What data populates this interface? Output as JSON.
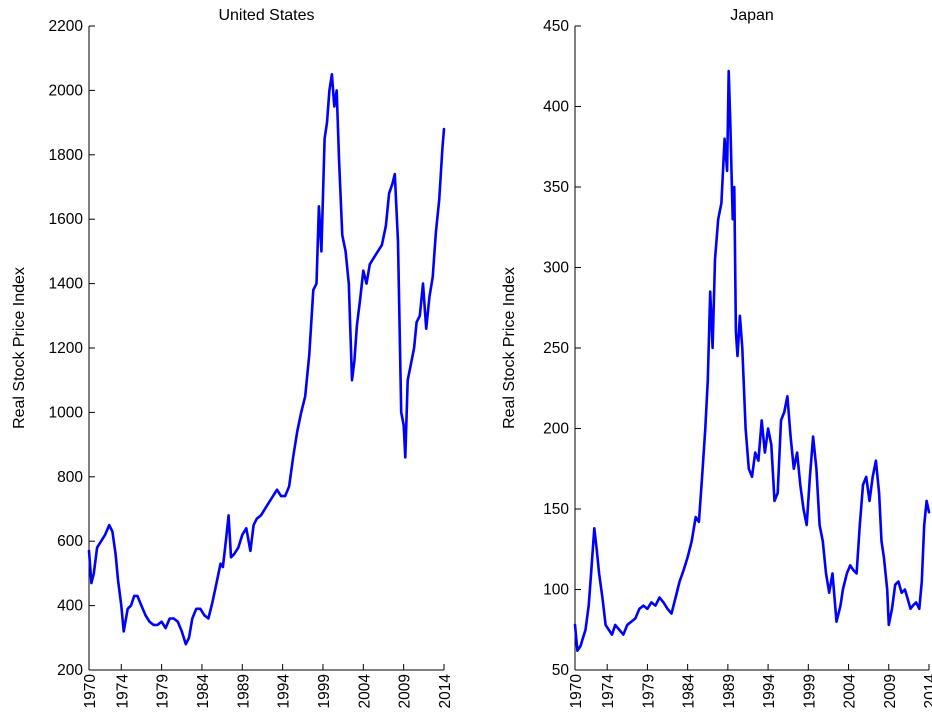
{
  "chart_data": [
    {
      "type": "line",
      "title": "United States",
      "xlabel": "",
      "ylabel": "Real Stock Price Index",
      "xlim": [
        1970,
        2014
      ],
      "ylim": [
        200,
        2200
      ],
      "xticks": [
        1970,
        1974,
        1979,
        1984,
        1989,
        1994,
        1999,
        2004,
        2009,
        2014
      ],
      "yticks": [
        200,
        400,
        600,
        800,
        1000,
        1200,
        1400,
        1600,
        1800,
        2000,
        2200
      ],
      "grid": false,
      "color": "#0000ff",
      "x": [
        1970.0,
        1970.3,
        1970.6,
        1971.0,
        1971.5,
        1972.0,
        1972.5,
        1972.9,
        1973.3,
        1973.6,
        1974.0,
        1974.3,
        1974.8,
        1975.2,
        1975.6,
        1976.0,
        1976.5,
        1977.0,
        1977.5,
        1978.0,
        1978.5,
        1979.0,
        1979.5,
        1980.0,
        1980.5,
        1981.0,
        1981.5,
        1982.0,
        1982.4,
        1982.8,
        1983.3,
        1983.8,
        1984.3,
        1984.8,
        1985.3,
        1985.8,
        1986.3,
        1986.6,
        1987.0,
        1987.3,
        1987.6,
        1988.0,
        1988.5,
        1989.0,
        1989.5,
        1990.0,
        1990.4,
        1990.8,
        1991.3,
        1991.8,
        1992.3,
        1992.8,
        1993.3,
        1993.8,
        1994.3,
        1994.8,
        1995.3,
        1995.8,
        1996.3,
        1996.8,
        1997.3,
        1997.8,
        1998.2,
        1998.5,
        1998.8,
        1999.2,
        1999.5,
        1999.8,
        2000.1,
        2000.4,
        2000.7,
        2001.0,
        2001.4,
        2001.8,
        2002.2,
        2002.6,
        2002.9,
        2003.2,
        2003.6,
        2004.0,
        2004.4,
        2004.8,
        2005.3,
        2005.8,
        2006.3,
        2006.8,
        2007.2,
        2007.6,
        2007.9,
        2008.3,
        2008.7,
        2009.0,
        2009.2,
        2009.5,
        2009.9,
        2010.3,
        2010.6,
        2011.0,
        2011.4,
        2011.8,
        2012.2,
        2012.6,
        2013.0,
        2013.4,
        2013.8,
        2014.0
      ],
      "values": [
        570,
        470,
        500,
        580,
        600,
        620,
        650,
        630,
        560,
        480,
        400,
        320,
        390,
        400,
        430,
        430,
        400,
        370,
        350,
        340,
        340,
        350,
        330,
        360,
        360,
        350,
        320,
        280,
        300,
        360,
        390,
        390,
        370,
        360,
        410,
        470,
        530,
        520,
        610,
        680,
        550,
        560,
        580,
        620,
        640,
        570,
        650,
        670,
        680,
        700,
        720,
        740,
        760,
        740,
        740,
        770,
        860,
        940,
        1000,
        1050,
        1180,
        1380,
        1400,
        1640,
        1500,
        1850,
        1900,
        2000,
        2050,
        1950,
        2000,
        1780,
        1550,
        1500,
        1400,
        1100,
        1160,
        1270,
        1350,
        1440,
        1400,
        1460,
        1480,
        1500,
        1520,
        1580,
        1680,
        1710,
        1740,
        1530,
        1000,
        960,
        860,
        1100,
        1150,
        1200,
        1280,
        1300,
        1400,
        1260,
        1360,
        1420,
        1560,
        1660,
        1820,
        1880
      ]
    },
    {
      "type": "line",
      "title": "Japan",
      "xlabel": "",
      "ylabel": "Real Stock Price Index",
      "xlim": [
        1970,
        2014
      ],
      "ylim": [
        50,
        450
      ],
      "xticks": [
        1970,
        1974,
        1979,
        1984,
        1989,
        1994,
        1999,
        2004,
        2009,
        2014
      ],
      "yticks": [
        50,
        100,
        150,
        200,
        250,
        300,
        350,
        400,
        450
      ],
      "grid": false,
      "color": "#0000ff",
      "x": [
        1970.0,
        1970.3,
        1970.7,
        1971.0,
        1971.3,
        1971.7,
        1972.0,
        1972.4,
        1972.7,
        1973.0,
        1973.4,
        1973.8,
        1974.2,
        1974.6,
        1975.0,
        1975.5,
        1976.0,
        1976.5,
        1977.0,
        1977.5,
        1978.0,
        1978.5,
        1979.0,
        1979.5,
        1980.0,
        1980.5,
        1981.0,
        1981.5,
        1982.0,
        1982.5,
        1983.0,
        1983.5,
        1984.0,
        1984.5,
        1985.0,
        1985.4,
        1985.8,
        1986.2,
        1986.5,
        1986.8,
        1987.1,
        1987.4,
        1987.8,
        1988.2,
        1988.6,
        1988.9,
        1989.1,
        1989.3,
        1989.6,
        1989.8,
        1990.0,
        1990.2,
        1990.5,
        1990.8,
        1991.2,
        1991.6,
        1992.0,
        1992.4,
        1992.8,
        1993.2,
        1993.6,
        1994.0,
        1994.4,
        1994.8,
        1995.2,
        1995.6,
        1996.0,
        1996.4,
        1996.8,
        1997.2,
        1997.6,
        1998.0,
        1998.4,
        1998.8,
        1999.2,
        1999.6,
        2000.0,
        2000.4,
        2000.8,
        2001.2,
        2001.6,
        2002.0,
        2002.5,
        2003.0,
        2003.3,
        2003.8,
        2004.2,
        2004.6,
        2005.0,
        2005.4,
        2005.8,
        2006.2,
        2006.6,
        2007.0,
        2007.4,
        2007.8,
        2008.1,
        2008.4,
        2008.8,
        2009.0,
        2009.4,
        2009.8,
        2010.2,
        2010.6,
        2011.0,
        2011.3,
        2011.7,
        2012.0,
        2012.4,
        2012.8,
        2013.1,
        2013.4,
        2013.7,
        2014.0
      ],
      "values": [
        78,
        62,
        65,
        70,
        75,
        90,
        110,
        138,
        125,
        110,
        95,
        78,
        75,
        72,
        78,
        75,
        72,
        78,
        80,
        82,
        88,
        90,
        88,
        92,
        90,
        95,
        92,
        88,
        85,
        95,
        105,
        112,
        120,
        130,
        145,
        142,
        170,
        200,
        230,
        285,
        250,
        305,
        330,
        340,
        380,
        360,
        422,
        390,
        330,
        350,
        260,
        245,
        270,
        250,
        200,
        175,
        170,
        185,
        180,
        205,
        185,
        200,
        190,
        155,
        160,
        205,
        210,
        220,
        195,
        175,
        185,
        165,
        150,
        140,
        170,
        195,
        175,
        140,
        130,
        110,
        98,
        110,
        80,
        90,
        100,
        110,
        115,
        112,
        110,
        140,
        165,
        170,
        155,
        170,
        180,
        160,
        130,
        120,
        100,
        78,
        88,
        103,
        105,
        98,
        100,
        95,
        88,
        90,
        92,
        88,
        105,
        140,
        155,
        148
      ]
    }
  ]
}
